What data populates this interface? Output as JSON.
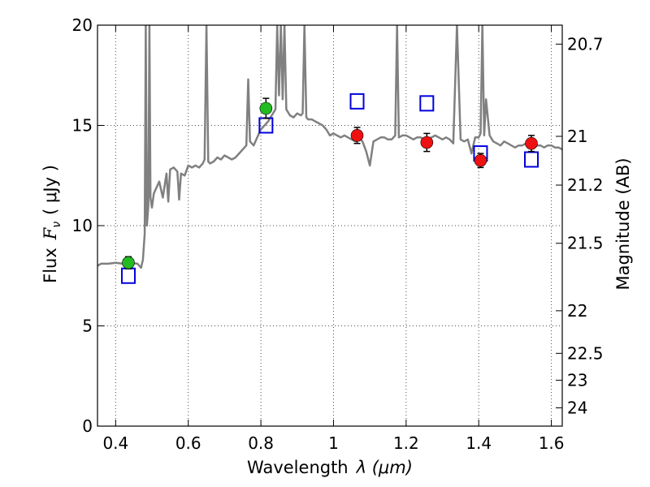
{
  "chart_data": {
    "type": "scatter",
    "xlabel": "Wavelength",
    "xlabel_symbol": "λ (μm)",
    "ylabel": "Flux",
    "ylabel_symbol": "F",
    "ylabel_sub": "ν",
    "ylabel_unit": "( μJy )",
    "y2label": "Magnitude (AB)",
    "xlim": [
      0.35,
      1.63
    ],
    "ylim": [
      0,
      20
    ],
    "grid": true,
    "x_ticks": [
      {
        "value": 0.4,
        "label": "0.4"
      },
      {
        "value": 0.6,
        "label": "0.6"
      },
      {
        "value": 0.8,
        "label": "0.8"
      },
      {
        "value": 1.0,
        "label": "1"
      },
      {
        "value": 1.2,
        "label": "1.2"
      },
      {
        "value": 1.4,
        "label": "1.4"
      },
      {
        "value": 1.6,
        "label": "1.6"
      }
    ],
    "y_ticks": [
      {
        "value": 0,
        "label": "0"
      },
      {
        "value": 5,
        "label": "5"
      },
      {
        "value": 10,
        "label": "10"
      },
      {
        "value": 15,
        "label": "15"
      },
      {
        "value": 20,
        "label": "20"
      }
    ],
    "y2_ticks": [
      {
        "value": 20.7,
        "label": "20.7"
      },
      {
        "value": 21,
        "label": "21"
      },
      {
        "value": 21.2,
        "label": "21.2"
      },
      {
        "value": 21.5,
        "label": "21.5"
      },
      {
        "value": 22,
        "label": "22"
      },
      {
        "value": 22.5,
        "label": "22.5"
      },
      {
        "value": 23,
        "label": "23"
      },
      {
        "value": 24,
        "label": "24"
      }
    ],
    "series": [
      {
        "marker": "line",
        "color": "#808080",
        "points": [
          [
            0.35,
            8.0
          ],
          [
            0.36,
            8.1
          ],
          [
            0.38,
            8.1
          ],
          [
            0.4,
            8.15
          ],
          [
            0.42,
            8.1
          ],
          [
            0.44,
            8.15
          ],
          [
            0.46,
            8.1
          ],
          [
            0.47,
            7.9
          ],
          [
            0.475,
            8.3
          ],
          [
            0.48,
            9.6
          ],
          [
            0.483,
            20.0
          ],
          [
            0.486,
            10.0
          ],
          [
            0.49,
            11.0
          ],
          [
            0.493,
            20.0
          ],
          [
            0.496,
            11.4
          ],
          [
            0.5,
            10.9
          ],
          [
            0.505,
            11.6
          ],
          [
            0.51,
            11.8
          ],
          [
            0.52,
            12.2
          ],
          [
            0.53,
            11.4
          ],
          [
            0.54,
            12.6
          ],
          [
            0.545,
            11.2
          ],
          [
            0.55,
            12.8
          ],
          [
            0.56,
            12.9
          ],
          [
            0.57,
            12.7
          ],
          [
            0.575,
            11.3
          ],
          [
            0.58,
            12.6
          ],
          [
            0.59,
            12.5
          ],
          [
            0.6,
            13.0
          ],
          [
            0.61,
            12.9
          ],
          [
            0.62,
            13.0
          ],
          [
            0.63,
            12.9
          ],
          [
            0.64,
            13.1
          ],
          [
            0.645,
            13.3
          ],
          [
            0.65,
            20.0
          ],
          [
            0.655,
            13.2
          ],
          [
            0.66,
            13.1
          ],
          [
            0.67,
            13.2
          ],
          [
            0.68,
            13.4
          ],
          [
            0.69,
            13.3
          ],
          [
            0.7,
            13.5
          ],
          [
            0.71,
            13.4
          ],
          [
            0.72,
            13.3
          ],
          [
            0.73,
            13.4
          ],
          [
            0.74,
            13.6
          ],
          [
            0.75,
            13.8
          ],
          [
            0.76,
            14.0
          ],
          [
            0.765,
            17.3
          ],
          [
            0.77,
            14.2
          ],
          [
            0.78,
            14.0
          ],
          [
            0.79,
            14.4
          ],
          [
            0.8,
            14.8
          ],
          [
            0.81,
            15.0
          ],
          [
            0.82,
            15.2
          ],
          [
            0.83,
            15.5
          ],
          [
            0.84,
            15.8
          ],
          [
            0.845,
            20.0
          ],
          [
            0.85,
            16.5
          ],
          [
            0.855,
            20.0
          ],
          [
            0.86,
            16.3
          ],
          [
            0.865,
            20.0
          ],
          [
            0.87,
            15.8
          ],
          [
            0.88,
            15.5
          ],
          [
            0.89,
            15.4
          ],
          [
            0.9,
            15.6
          ],
          [
            0.91,
            15.5
          ],
          [
            0.915,
            15.6
          ],
          [
            0.92,
            20.0
          ],
          [
            0.925,
            15.4
          ],
          [
            0.93,
            15.3
          ],
          [
            0.94,
            15.3
          ],
          [
            0.95,
            15.2
          ],
          [
            0.96,
            15.1
          ],
          [
            0.97,
            15.0
          ],
          [
            0.98,
            14.8
          ],
          [
            0.99,
            14.5
          ],
          [
            1.0,
            14.6
          ],
          [
            1.01,
            14.5
          ],
          [
            1.02,
            14.4
          ],
          [
            1.03,
            14.5
          ],
          [
            1.04,
            14.4
          ],
          [
            1.05,
            14.3
          ],
          [
            1.06,
            14.2
          ],
          [
            1.07,
            14.4
          ],
          [
            1.08,
            14.2
          ],
          [
            1.09,
            13.7
          ],
          [
            1.1,
            13.0
          ],
          [
            1.11,
            14.2
          ],
          [
            1.12,
            14.3
          ],
          [
            1.13,
            14.4
          ],
          [
            1.14,
            14.4
          ],
          [
            1.15,
            14.3
          ],
          [
            1.16,
            14.3
          ],
          [
            1.17,
            14.5
          ],
          [
            1.175,
            20.0
          ],
          [
            1.18,
            14.4
          ],
          [
            1.19,
            14.5
          ],
          [
            1.2,
            14.5
          ],
          [
            1.21,
            14.4
          ],
          [
            1.22,
            14.3
          ],
          [
            1.23,
            14.4
          ],
          [
            1.24,
            14.4
          ],
          [
            1.25,
            14.3
          ],
          [
            1.26,
            14.3
          ],
          [
            1.27,
            14.4
          ],
          [
            1.28,
            14.5
          ],
          [
            1.29,
            14.4
          ],
          [
            1.3,
            14.3
          ],
          [
            1.31,
            14.4
          ],
          [
            1.32,
            14.3
          ],
          [
            1.33,
            14.1
          ],
          [
            1.34,
            20.0
          ],
          [
            1.35,
            14.3
          ],
          [
            1.36,
            14.2
          ],
          [
            1.37,
            14.3
          ],
          [
            1.38,
            13.6
          ],
          [
            1.39,
            14.4
          ],
          [
            1.4,
            14.4
          ],
          [
            1.405,
            14.6
          ],
          [
            1.41,
            20.0
          ],
          [
            1.415,
            14.5
          ],
          [
            1.42,
            16.3
          ],
          [
            1.43,
            14.5
          ],
          [
            1.44,
            14.2
          ],
          [
            1.45,
            14.1
          ],
          [
            1.46,
            14.0
          ],
          [
            1.47,
            14.2
          ],
          [
            1.48,
            14.1
          ],
          [
            1.49,
            14.0
          ],
          [
            1.5,
            13.9
          ],
          [
            1.51,
            14.0
          ],
          [
            1.52,
            14.0
          ],
          [
            1.53,
            14.1
          ],
          [
            1.54,
            14.0
          ],
          [
            1.55,
            13.9
          ],
          [
            1.56,
            14.0
          ],
          [
            1.57,
            14.0
          ],
          [
            1.58,
            13.9
          ],
          [
            1.59,
            14.0
          ],
          [
            1.6,
            14.0
          ],
          [
            1.61,
            13.9
          ],
          [
            1.62,
            13.9
          ],
          [
            1.63,
            13.8
          ]
        ]
      },
      {
        "marker": "square",
        "color": "#0000dd",
        "points": [
          [
            0.435,
            7.5
          ],
          [
            0.814,
            15.0
          ],
          [
            1.065,
            16.2
          ],
          [
            1.257,
            16.1
          ],
          [
            1.405,
            13.6
          ],
          [
            1.545,
            13.3
          ]
        ]
      },
      {
        "marker": "circle",
        "color": "#22bb22",
        "points": [
          {
            "x": 0.435,
            "y": 8.15,
            "err": 0.3
          },
          {
            "x": 0.814,
            "y": 15.85,
            "err": 0.5
          }
        ]
      },
      {
        "marker": "circle",
        "color": "#ee1111",
        "points": [
          {
            "x": 1.065,
            "y": 14.5,
            "err": 0.4
          },
          {
            "x": 1.257,
            "y": 14.15,
            "err": 0.45
          },
          {
            "x": 1.405,
            "y": 13.25,
            "err": 0.35
          },
          {
            "x": 1.545,
            "y": 14.1,
            "err": 0.4
          }
        ]
      }
    ]
  }
}
